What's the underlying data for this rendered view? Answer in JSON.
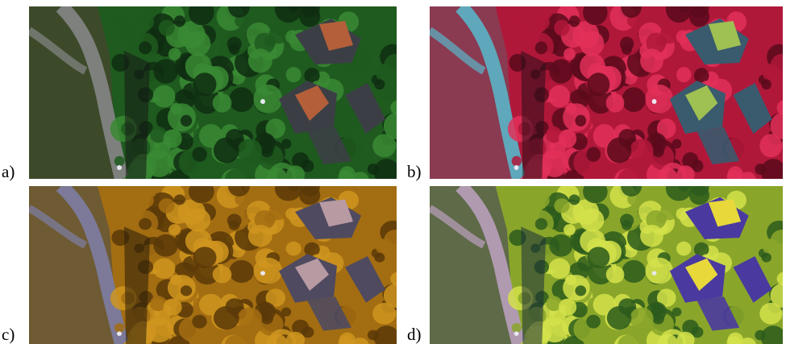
{
  "panels": [
    {
      "label": "a)",
      "palette": {
        "canopy": "#1f5a1f",
        "canopy_light": "#3a8a34",
        "canopy_dark": "#0f2e12",
        "lawn": "#3d4a2a",
        "road": "#7d807c",
        "building": "#3b3f45",
        "roof": "#b45f3a",
        "shadow": "#151a16"
      }
    },
    {
      "label": "b)",
      "palette": {
        "canopy": "#b0183a",
        "canopy_light": "#e23059",
        "canopy_dark": "#5a0a1c",
        "lawn": "#8a3b52",
        "road": "#5fa7ba",
        "building": "#3a5a6e",
        "roof": "#9fc052",
        "shadow": "#2a0e18"
      }
    },
    {
      "label": "c)",
      "palette": {
        "canopy": "#a36d12",
        "canopy_light": "#cf951f",
        "canopy_dark": "#5a3a08",
        "lawn": "#6e5a33",
        "road": "#7c7a98",
        "building": "#4f4a60",
        "roof": "#b89aa2",
        "shadow": "#2a1e0a"
      }
    },
    {
      "label": "d)",
      "palette": {
        "canopy": "#8aa62a",
        "canopy_light": "#d4e24a",
        "canopy_dark": "#2c5a1c",
        "lawn": "#5e6a48",
        "road": "#b09ab0",
        "building": "#4a3aa0",
        "roof": "#e8d83a",
        "shadow": "#1a2e3a"
      }
    }
  ]
}
